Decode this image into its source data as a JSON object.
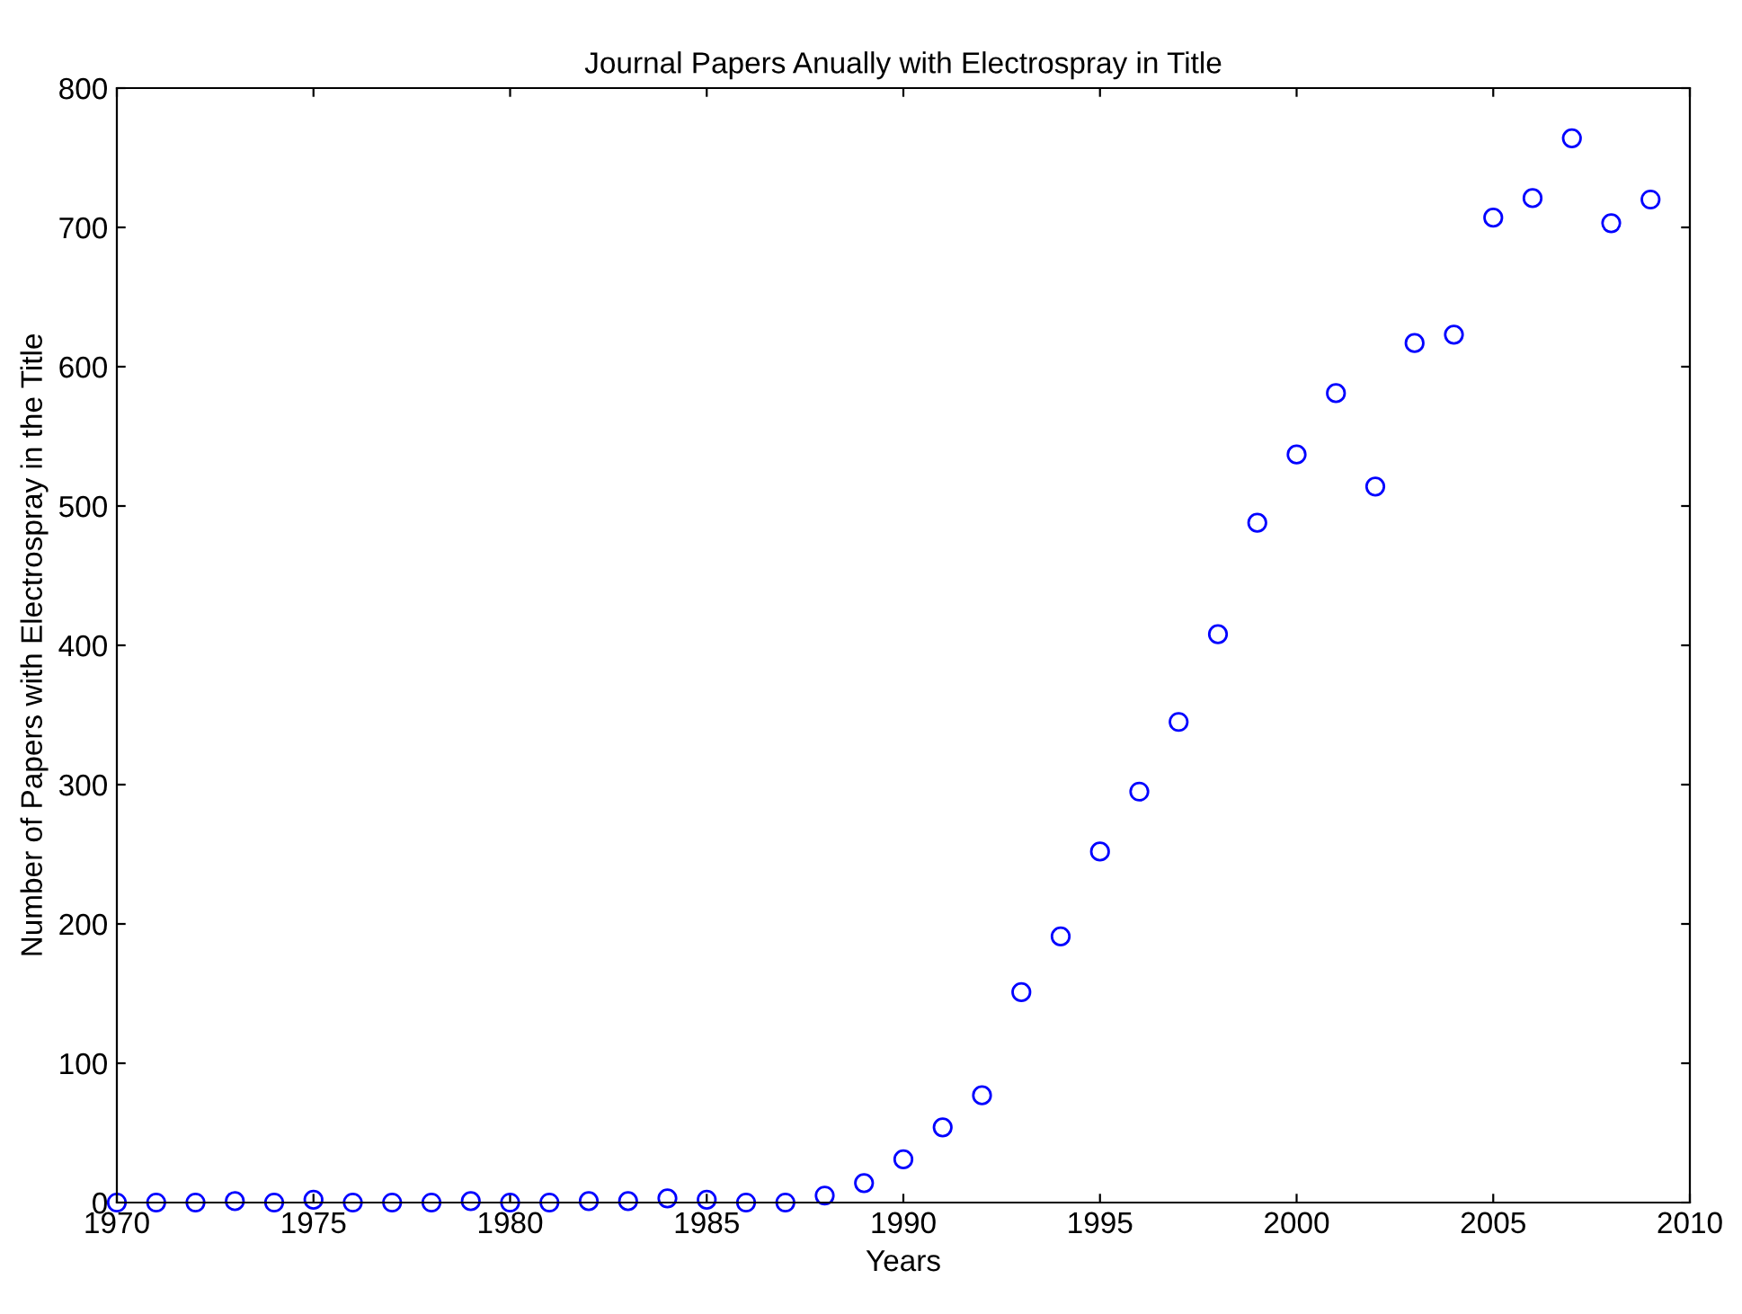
{
  "chart_data": {
    "type": "scatter",
    "title": "Journal Papers Anually with Electrospray in Title",
    "xlabel": "Years",
    "ylabel": "Number of Papers with Electrospray in the Title",
    "x": [
      1970,
      1971,
      1972,
      1973,
      1974,
      1975,
      1976,
      1977,
      1978,
      1979,
      1980,
      1981,
      1982,
      1983,
      1984,
      1985,
      1986,
      1987,
      1988,
      1989,
      1990,
      1991,
      1992,
      1993,
      1994,
      1995,
      1996,
      1997,
      1998,
      1999,
      2000,
      2001,
      2002,
      2003,
      2004,
      2005,
      2006,
      2007,
      2008,
      2009
    ],
    "series": [
      {
        "color": "#0000ff",
        "values": [
          0,
          0,
          0,
          1,
          0,
          2,
          0,
          0,
          0,
          1,
          0,
          0,
          1,
          1,
          3,
          2,
          0,
          0,
          5,
          14,
          31,
          54,
          77,
          151,
          191,
          252,
          295,
          345,
          408,
          488,
          537,
          581,
          514,
          617,
          623,
          707,
          721,
          764,
          703,
          720
        ]
      }
    ],
    "xlim": [
      1970,
      2010
    ],
    "xticks": [
      1970,
      1975,
      1980,
      1985,
      1990,
      1995,
      2000,
      2005,
      2010
    ],
    "ylim": [
      0,
      800
    ],
    "yticks": [
      0,
      100,
      200,
      300,
      400,
      500,
      600,
      700,
      800
    ],
    "marker": "circle",
    "grid": false,
    "legend": false
  }
}
